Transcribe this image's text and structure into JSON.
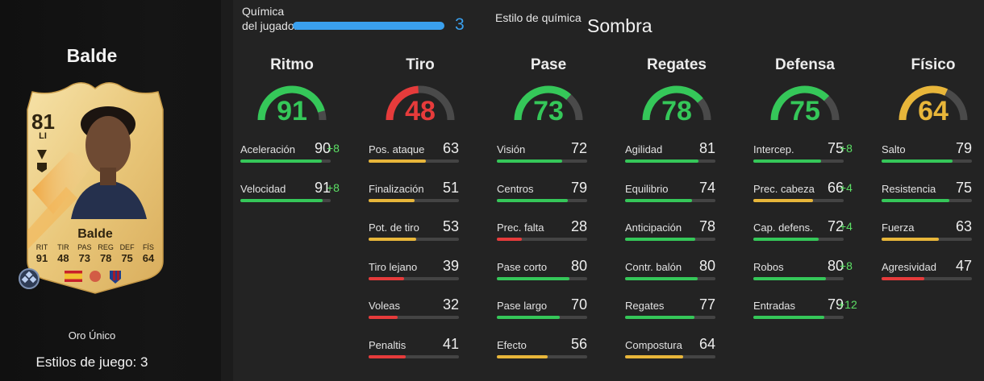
{
  "player": {
    "name": "Balde",
    "card_type": "Oro Único",
    "playstyles": "Estilos de juego: 3"
  },
  "card": {
    "rating": "81",
    "position": "LI",
    "name": "Balde",
    "stats": [
      {
        "label": "RIT",
        "value": "91"
      },
      {
        "label": "TIR",
        "value": "48"
      },
      {
        "label": "PAS",
        "value": "73"
      },
      {
        "label": "REG",
        "value": "78"
      },
      {
        "label": "DEF",
        "value": "75"
      },
      {
        "label": "FÍS",
        "value": "64"
      }
    ]
  },
  "chemistry": {
    "label": "Química del jugador",
    "value": "3",
    "max": 3,
    "style_label": "Estilo de química",
    "style_value": "Sombra"
  },
  "colors": {
    "green": "#35c759",
    "yellow": "#e8b63a",
    "red": "#e63b3b",
    "blue": "#3aa0ee",
    "bonus": "#5ce065"
  },
  "categories": [
    {
      "title": "Ritmo",
      "value": 91,
      "stats": [
        {
          "name": "Aceleración",
          "value": 90,
          "bonus": "+8"
        },
        {
          "name": "Velocidad",
          "value": 91,
          "bonus": "+8"
        }
      ]
    },
    {
      "title": "Tiro",
      "value": 48,
      "stats": [
        {
          "name": "Pos. ataque",
          "value": 63,
          "bonus": ""
        },
        {
          "name": "Finalización",
          "value": 51,
          "bonus": ""
        },
        {
          "name": "Pot. de tiro",
          "value": 53,
          "bonus": ""
        },
        {
          "name": "Tiro lejano",
          "value": 39,
          "bonus": ""
        },
        {
          "name": "Voleas",
          "value": 32,
          "bonus": ""
        },
        {
          "name": "Penaltis",
          "value": 41,
          "bonus": ""
        }
      ]
    },
    {
      "title": "Pase",
      "value": 73,
      "stats": [
        {
          "name": "Visión",
          "value": 72,
          "bonus": ""
        },
        {
          "name": "Centros",
          "value": 79,
          "bonus": ""
        },
        {
          "name": "Prec. falta",
          "value": 28,
          "bonus": ""
        },
        {
          "name": "Pase corto",
          "value": 80,
          "bonus": ""
        },
        {
          "name": "Pase largo",
          "value": 70,
          "bonus": ""
        },
        {
          "name": "Efecto",
          "value": 56,
          "bonus": ""
        }
      ]
    },
    {
      "title": "Regates",
      "value": 78,
      "stats": [
        {
          "name": "Agilidad",
          "value": 81,
          "bonus": ""
        },
        {
          "name": "Equilibrio",
          "value": 74,
          "bonus": ""
        },
        {
          "name": "Anticipación",
          "value": 78,
          "bonus": ""
        },
        {
          "name": "Contr. balón",
          "value": 80,
          "bonus": ""
        },
        {
          "name": "Regates",
          "value": 77,
          "bonus": ""
        },
        {
          "name": "Compostura",
          "value": 64,
          "bonus": ""
        }
      ]
    },
    {
      "title": "Defensa",
      "value": 75,
      "stats": [
        {
          "name": "Intercep.",
          "value": 75,
          "bonus": "+8"
        },
        {
          "name": "Prec. cabeza",
          "value": 66,
          "bonus": "+4"
        },
        {
          "name": "Cap. defens.",
          "value": 72,
          "bonus": "+4"
        },
        {
          "name": "Robos",
          "value": 80,
          "bonus": "+8"
        },
        {
          "name": "Entradas",
          "value": 79,
          "bonus": "+12"
        }
      ]
    },
    {
      "title": "Físico",
      "value": 64,
      "stats": [
        {
          "name": "Salto",
          "value": 79,
          "bonus": ""
        },
        {
          "name": "Resistencia",
          "value": 75,
          "bonus": ""
        },
        {
          "name": "Fuerza",
          "value": 63,
          "bonus": ""
        },
        {
          "name": "Agresividad",
          "value": 47,
          "bonus": ""
        }
      ]
    }
  ]
}
